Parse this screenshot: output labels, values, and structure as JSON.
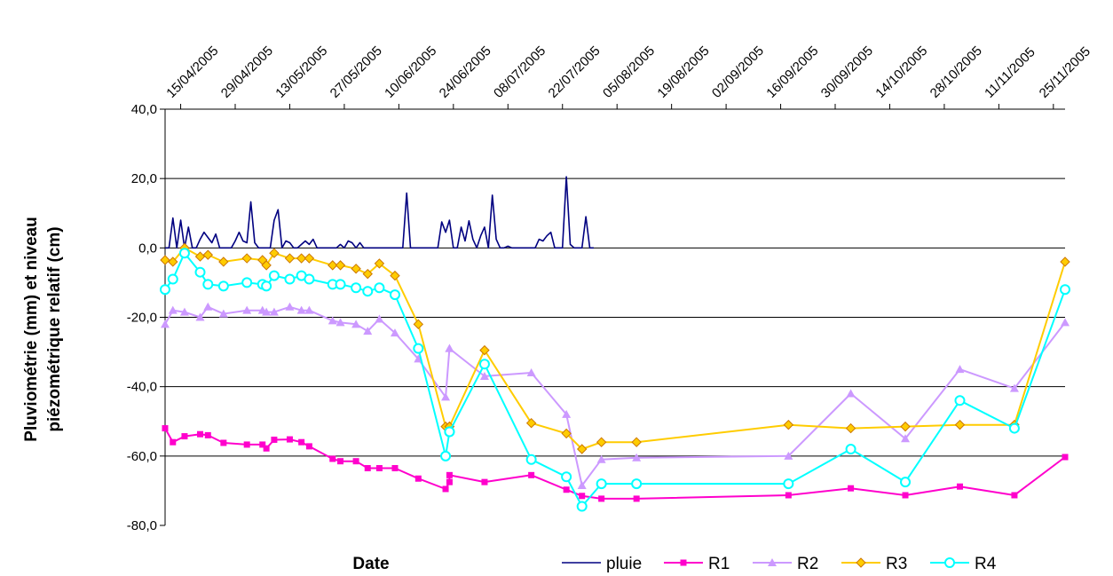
{
  "chart_data": {
    "type": "line",
    "xlabel": "Date",
    "ylabel_line1": "Pluviométrie (mm) et niveau",
    "ylabel_line2": "piézométrique relatif (cm)",
    "ylim": [
      -80,
      40
    ],
    "y_ticks": [
      40,
      20,
      0,
      -20,
      -40,
      -60,
      -80
    ],
    "y_tick_labels": [
      "40,0",
      "20,0",
      "0,0",
      "-20,0",
      "-40,0",
      "-60,0",
      "-80,0"
    ],
    "xlim": [
      "2005-04-11",
      "2005-11-28"
    ],
    "x_ticks": [
      "2005-04-15",
      "2005-04-29",
      "2005-05-13",
      "2005-05-27",
      "2005-06-10",
      "2005-06-24",
      "2005-07-08",
      "2005-07-22",
      "2005-08-05",
      "2005-08-19",
      "2005-09-02",
      "2005-09-16",
      "2005-09-30",
      "2005-10-14",
      "2005-10-28",
      "2005-11-11",
      "2005-11-25"
    ],
    "x_tick_labels": [
      "15/04/2005",
      "29/04/2005",
      "13/05/2005",
      "27/05/2005",
      "10/06/2005",
      "24/06/2005",
      "08/07/2005",
      "22/07/2005",
      "05/08/2005",
      "19/08/2005",
      "02/09/2005",
      "16/09/2005",
      "30/09/2005",
      "14/10/2005",
      "28/10/2005",
      "11/11/2005",
      "25/11/2005"
    ],
    "grid": true,
    "legend_position": "bottom-right",
    "series": [
      {
        "name": "pluie",
        "color": "#000080",
        "marker": "none",
        "points": [
          [
            "2005-04-11",
            0
          ],
          [
            "2005-04-12",
            0
          ],
          [
            "2005-04-13",
            8.6
          ],
          [
            "2005-04-14",
            0
          ],
          [
            "2005-04-15",
            8
          ],
          [
            "2005-04-16",
            0
          ],
          [
            "2005-04-17",
            6
          ],
          [
            "2005-04-18",
            0
          ],
          [
            "2005-04-19",
            0
          ],
          [
            "2005-04-20",
            2.5
          ],
          [
            "2005-04-21",
            4.5
          ],
          [
            "2005-04-22",
            3
          ],
          [
            "2005-04-23",
            1.5
          ],
          [
            "2005-04-24",
            4
          ],
          [
            "2005-04-25",
            0
          ],
          [
            "2005-04-26",
            0
          ],
          [
            "2005-04-27",
            0
          ],
          [
            "2005-04-28",
            0
          ],
          [
            "2005-04-29",
            2
          ],
          [
            "2005-04-30",
            4.5
          ],
          [
            "2005-05-01",
            2
          ],
          [
            "2005-05-02",
            1.5
          ],
          [
            "2005-05-03",
            13.3
          ],
          [
            "2005-05-04",
            1.5
          ],
          [
            "2005-05-05",
            0
          ],
          [
            "2005-05-06",
            0
          ],
          [
            "2005-05-07",
            0
          ],
          [
            "2005-05-08",
            0
          ],
          [
            "2005-05-09",
            8
          ],
          [
            "2005-05-10",
            11
          ],
          [
            "2005-05-11",
            0
          ],
          [
            "2005-05-12",
            2
          ],
          [
            "2005-05-13",
            1.5
          ],
          [
            "2005-05-14",
            0
          ],
          [
            "2005-05-15",
            0
          ],
          [
            "2005-05-16",
            1
          ],
          [
            "2005-05-17",
            2
          ],
          [
            "2005-05-18",
            1
          ],
          [
            "2005-05-19",
            2.5
          ],
          [
            "2005-05-20",
            0
          ],
          [
            "2005-05-21",
            0
          ],
          [
            "2005-05-22",
            0
          ],
          [
            "2005-05-23",
            0
          ],
          [
            "2005-05-24",
            0
          ],
          [
            "2005-05-25",
            0
          ],
          [
            "2005-05-26",
            1
          ],
          [
            "2005-05-27",
            0
          ],
          [
            "2005-05-28",
            2
          ],
          [
            "2005-05-29",
            1.5
          ],
          [
            "2005-05-30",
            0
          ],
          [
            "2005-05-31",
            1.5
          ],
          [
            "2005-06-01",
            0
          ],
          [
            "2005-06-02",
            0
          ],
          [
            "2005-06-03",
            0
          ],
          [
            "2005-06-04",
            0
          ],
          [
            "2005-06-05",
            0
          ],
          [
            "2005-06-06",
            0
          ],
          [
            "2005-06-07",
            0
          ],
          [
            "2005-06-08",
            0
          ],
          [
            "2005-06-09",
            0
          ],
          [
            "2005-06-10",
            0
          ],
          [
            "2005-06-11",
            0
          ],
          [
            "2005-06-12",
            15.8
          ],
          [
            "2005-06-13",
            0
          ],
          [
            "2005-06-14",
            0
          ],
          [
            "2005-06-15",
            0
          ],
          [
            "2005-06-16",
            0
          ],
          [
            "2005-06-17",
            0
          ],
          [
            "2005-06-18",
            0
          ],
          [
            "2005-06-19",
            0
          ],
          [
            "2005-06-20",
            0
          ],
          [
            "2005-06-21",
            7.5
          ],
          [
            "2005-06-22",
            4.5
          ],
          [
            "2005-06-23",
            8
          ],
          [
            "2005-06-24",
            0
          ],
          [
            "2005-06-25",
            0
          ],
          [
            "2005-06-26",
            6
          ],
          [
            "2005-06-27",
            2
          ],
          [
            "2005-06-28",
            7.8
          ],
          [
            "2005-06-29",
            2.5
          ],
          [
            "2005-06-30",
            0
          ],
          [
            "2005-07-01",
            3.5
          ],
          [
            "2005-07-02",
            6
          ],
          [
            "2005-07-03",
            0
          ],
          [
            "2005-07-04",
            15.2
          ],
          [
            "2005-07-05",
            2.5
          ],
          [
            "2005-07-06",
            0
          ],
          [
            "2005-07-07",
            0
          ],
          [
            "2005-07-08",
            0.5
          ],
          [
            "2005-07-09",
            0
          ],
          [
            "2005-07-10",
            0
          ],
          [
            "2005-07-11",
            0
          ],
          [
            "2005-07-12",
            0
          ],
          [
            "2005-07-13",
            0
          ],
          [
            "2005-07-14",
            0
          ],
          [
            "2005-07-15",
            0
          ],
          [
            "2005-07-16",
            2.5
          ],
          [
            "2005-07-17",
            2
          ],
          [
            "2005-07-18",
            3.5
          ],
          [
            "2005-07-19",
            4.5
          ],
          [
            "2005-07-20",
            0
          ],
          [
            "2005-07-21",
            0
          ],
          [
            "2005-07-22",
            0
          ],
          [
            "2005-07-23",
            20.5
          ],
          [
            "2005-07-24",
            1
          ],
          [
            "2005-07-25",
            0
          ],
          [
            "2005-07-26",
            0
          ],
          [
            "2005-07-27",
            0
          ],
          [
            "2005-07-28",
            9
          ],
          [
            "2005-07-29",
            0
          ],
          [
            "2005-07-30",
            0
          ]
        ]
      },
      {
        "name": "R1",
        "color": "#ff00cc",
        "marker": "square",
        "points": [
          [
            "2005-04-11",
            -52
          ],
          [
            "2005-04-13",
            -56
          ],
          [
            "2005-04-16",
            -54.3
          ],
          [
            "2005-04-20",
            -53.7
          ],
          [
            "2005-04-22",
            -54
          ],
          [
            "2005-04-26",
            -56.2
          ],
          [
            "2005-05-02",
            -56.7
          ],
          [
            "2005-05-06",
            -56.7
          ],
          [
            "2005-05-07",
            -57.8
          ],
          [
            "2005-05-09",
            -55.3
          ],
          [
            "2005-05-13",
            -55.2
          ],
          [
            "2005-05-16",
            -56
          ],
          [
            "2005-05-18",
            -57.2
          ],
          [
            "2005-05-24",
            -60.8
          ],
          [
            "2005-05-26",
            -61.5
          ],
          [
            "2005-05-30",
            -61.5
          ],
          [
            "2005-06-02",
            -63.5
          ],
          [
            "2005-06-05",
            -63.5
          ],
          [
            "2005-06-09",
            -63.5
          ],
          [
            "2005-06-15",
            -66.5
          ],
          [
            "2005-06-22",
            -69.5
          ],
          [
            "2005-06-23",
            -67.5
          ],
          [
            "2005-06-23",
            -65.5
          ],
          [
            "2005-07-02",
            -67.5
          ],
          [
            "2005-07-14",
            -65.5
          ],
          [
            "2005-07-23",
            -69.7
          ],
          [
            "2005-07-27",
            -71.5
          ],
          [
            "2005-08-01",
            -72.3
          ],
          [
            "2005-08-10",
            -72.3
          ],
          [
            "2005-09-18",
            -71.3
          ],
          [
            "2005-10-04",
            -69.3
          ],
          [
            "2005-10-18",
            -71.3
          ],
          [
            "2005-11-01",
            -68.8
          ],
          [
            "2005-11-15",
            -71.3
          ],
          [
            "2005-11-28",
            -60.3
          ]
        ]
      },
      {
        "name": "R2",
        "color": "#cc99ff",
        "marker": "triangle",
        "points": [
          [
            "2005-04-11",
            -22
          ],
          [
            "2005-04-13",
            -18
          ],
          [
            "2005-04-16",
            -18.5
          ],
          [
            "2005-04-20",
            -20
          ],
          [
            "2005-04-22",
            -17
          ],
          [
            "2005-04-26",
            -19
          ],
          [
            "2005-05-02",
            -18
          ],
          [
            "2005-05-06",
            -18
          ],
          [
            "2005-05-07",
            -18.5
          ],
          [
            "2005-05-09",
            -18.5
          ],
          [
            "2005-05-13",
            -17
          ],
          [
            "2005-05-16",
            -18
          ],
          [
            "2005-05-18",
            -18
          ],
          [
            "2005-05-24",
            -21
          ],
          [
            "2005-05-26",
            -21.5
          ],
          [
            "2005-05-30",
            -22
          ],
          [
            "2005-06-02",
            -24
          ],
          [
            "2005-06-05",
            -20.5
          ],
          [
            "2005-06-09",
            -24.5
          ],
          [
            "2005-06-15",
            -32
          ],
          [
            "2005-06-22",
            -43
          ],
          [
            "2005-06-23",
            -29
          ],
          [
            "2005-06-23",
            -29
          ],
          [
            "2005-07-02",
            -37
          ],
          [
            "2005-07-14",
            -36
          ],
          [
            "2005-07-23",
            -48
          ],
          [
            "2005-07-27",
            -68.5
          ],
          [
            "2005-08-01",
            -61
          ],
          [
            "2005-08-10",
            -60.5
          ],
          [
            "2005-09-18",
            -60
          ],
          [
            "2005-10-04",
            -42
          ],
          [
            "2005-10-18",
            -55
          ],
          [
            "2005-11-01",
            -35
          ],
          [
            "2005-11-15",
            -40.5
          ],
          [
            "2005-11-28",
            -21.5
          ]
        ]
      },
      {
        "name": "R3",
        "color": "#ffcc00",
        "marker": "diamond",
        "points": [
          [
            "2005-04-11",
            -3.5
          ],
          [
            "2005-04-13",
            -4
          ],
          [
            "2005-04-16",
            0
          ],
          [
            "2005-04-20",
            -2.5
          ],
          [
            "2005-04-22",
            -2
          ],
          [
            "2005-04-26",
            -4
          ],
          [
            "2005-05-02",
            -3
          ],
          [
            "2005-05-06",
            -3.5
          ],
          [
            "2005-05-07",
            -5
          ],
          [
            "2005-05-09",
            -1.5
          ],
          [
            "2005-05-13",
            -3
          ],
          [
            "2005-05-16",
            -3
          ],
          [
            "2005-05-18",
            -3
          ],
          [
            "2005-05-24",
            -5
          ],
          [
            "2005-05-26",
            -5
          ],
          [
            "2005-05-30",
            -6
          ],
          [
            "2005-06-02",
            -7.5
          ],
          [
            "2005-06-05",
            -4.5
          ],
          [
            "2005-06-09",
            -8
          ],
          [
            "2005-06-15",
            -22
          ],
          [
            "2005-06-22",
            -51.5
          ],
          [
            "2005-06-23",
            -51.5
          ],
          [
            "2005-06-23",
            -51.5
          ],
          [
            "2005-07-02",
            -29.5
          ],
          [
            "2005-07-14",
            -50.5
          ],
          [
            "2005-07-23",
            -53.5
          ],
          [
            "2005-07-27",
            -58
          ],
          [
            "2005-08-01",
            -56
          ],
          [
            "2005-08-10",
            -56
          ],
          [
            "2005-09-18",
            -51
          ],
          [
            "2005-10-04",
            -52
          ],
          [
            "2005-10-18",
            -51.5
          ],
          [
            "2005-11-01",
            -51
          ],
          [
            "2005-11-15",
            -51
          ],
          [
            "2005-11-28",
            -4
          ]
        ]
      },
      {
        "name": "R4",
        "color": "#00ffff",
        "marker": "circle",
        "points": [
          [
            "2005-04-11",
            -12
          ],
          [
            "2005-04-13",
            -9
          ],
          [
            "2005-04-16",
            -1.5
          ],
          [
            "2005-04-20",
            -7
          ],
          [
            "2005-04-22",
            -10.5
          ],
          [
            "2005-04-26",
            -11
          ],
          [
            "2005-05-02",
            -10
          ],
          [
            "2005-05-06",
            -10.5
          ],
          [
            "2005-05-07",
            -11
          ],
          [
            "2005-05-09",
            -8
          ],
          [
            "2005-05-13",
            -9
          ],
          [
            "2005-05-16",
            -8
          ],
          [
            "2005-05-18",
            -9
          ],
          [
            "2005-05-24",
            -10.5
          ],
          [
            "2005-05-26",
            -10.5
          ],
          [
            "2005-05-30",
            -11.5
          ],
          [
            "2005-06-02",
            -12.5
          ],
          [
            "2005-06-05",
            -11.5
          ],
          [
            "2005-06-09",
            -13.5
          ],
          [
            "2005-06-15",
            -29
          ],
          [
            "2005-06-22",
            -60
          ],
          [
            "2005-06-23",
            -53
          ],
          [
            "2005-06-23",
            -53
          ],
          [
            "2005-07-02",
            -33.5
          ],
          [
            "2005-07-14",
            -61
          ],
          [
            "2005-07-23",
            -66
          ],
          [
            "2005-07-27",
            -74.5
          ],
          [
            "2005-08-01",
            -68
          ],
          [
            "2005-08-10",
            -68
          ],
          [
            "2005-09-18",
            -68
          ],
          [
            "2005-10-04",
            -58
          ],
          [
            "2005-10-18",
            -67.5
          ],
          [
            "2005-11-01",
            -44
          ],
          [
            "2005-11-15",
            -52
          ],
          [
            "2005-11-28",
            -12
          ]
        ]
      }
    ]
  }
}
